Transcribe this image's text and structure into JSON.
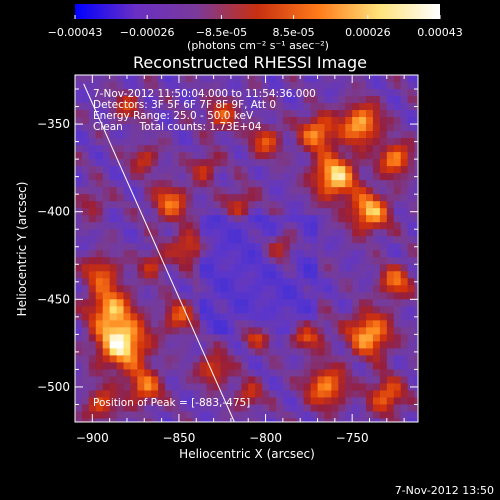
{
  "chart_data": {
    "type": "heatmap",
    "title": "Reconstructed RHESSI Image",
    "xlabel": "Heliocentric X (arcsec)",
    "ylabel": "Heliocentric Y (arcsec)",
    "xlim": [
      -910,
      -712
    ],
    "ylim": [
      -520,
      -322
    ],
    "x_ticks": [
      -900,
      -850,
      -800,
      -750
    ],
    "x_tick_labels": [
      "-900",
      "-850",
      "-800",
      "-750"
    ],
    "y_ticks": [
      -350,
      -400,
      -450,
      -500
    ],
    "y_tick_labels": [
      "-350",
      "-400",
      "-450",
      "-500"
    ],
    "colorbar": {
      "range": [
        -0.00043,
        0.00043
      ],
      "ticks": [
        -0.00043,
        -0.00026,
        -8.5e-05,
        8.5e-05,
        0.00026,
        0.00043
      ],
      "tick_labels": [
        "-0.00043",
        "-0.00026",
        "-8.5e-05",
        "8.5e-05",
        "0.00026",
        "0.00043"
      ],
      "unit_label": "(photons cm⁻² s⁻¹ asec⁻²)",
      "colors": [
        "#0000ff",
        "#6a2fc4",
        "#7a3a9a",
        "#c83010",
        "#ff7a1a",
        "#ffe27a",
        "#ffffff"
      ]
    },
    "info_lines": [
      "7-Nov-2012 11:50:04.000 to 11:54:36.000",
      "Detectors: 3F 5F 6F 7F 8F 9F, Att 0",
      "Energy Range: 25.0 - 50.0 keV",
      "Clean     Total counts: 1.73E+04"
    ],
    "peak_label": "Position of Peak = [-883,-475]",
    "peak": [
      -883,
      -475
    ],
    "limb_line": {
      "x": [
        -905,
        -818
      ],
      "y": [
        -327,
        -520
      ]
    },
    "grid": false
  },
  "footer": {
    "timestamp": "7-Nov-2012 13:50"
  }
}
